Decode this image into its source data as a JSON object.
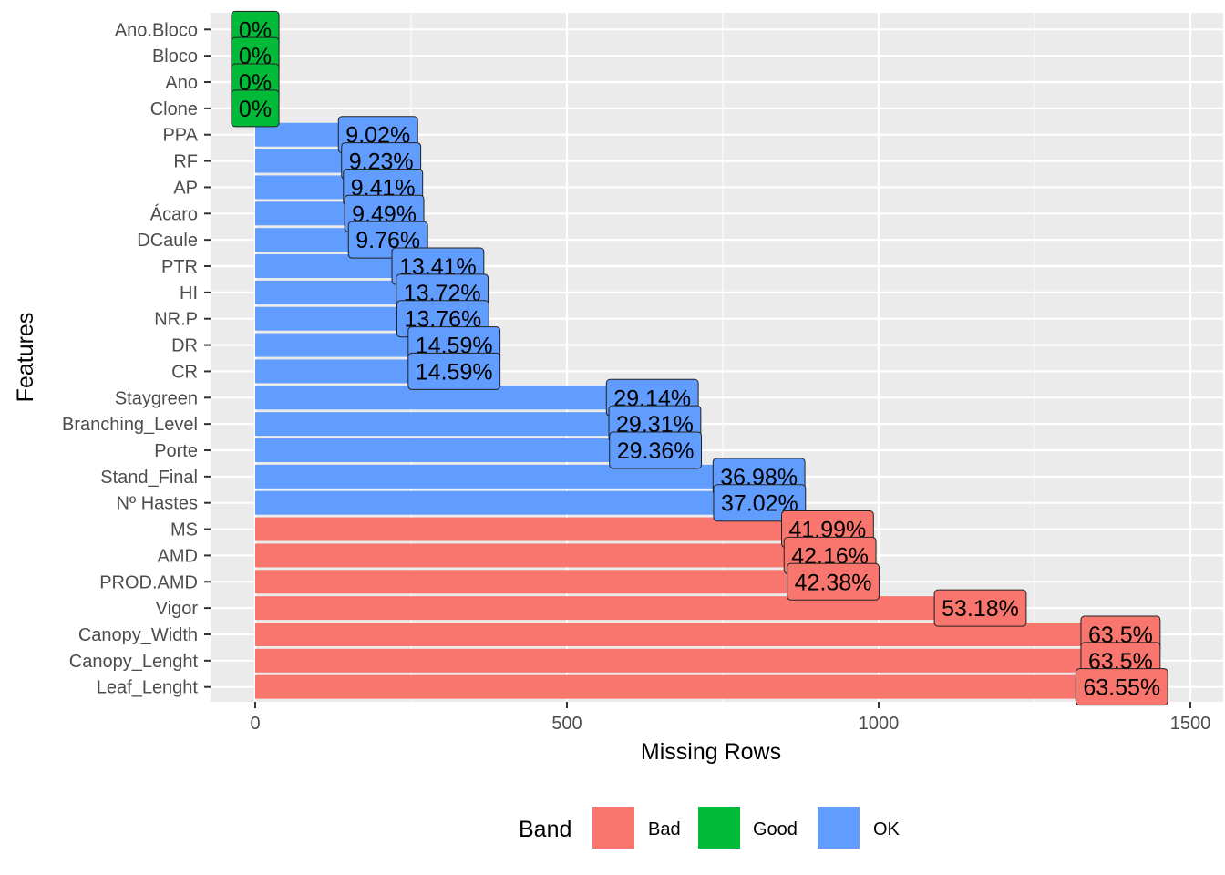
{
  "chart_data": {
    "type": "bar",
    "orientation": "horizontal",
    "xlabel": "Missing Rows",
    "ylabel": "Features",
    "xlim": [
      -72,
      1545
    ],
    "xticks": [
      0,
      500,
      1000,
      1500
    ],
    "grid": true,
    "legend": {
      "title": "Band",
      "placement": "bottom",
      "entries": [
        {
          "label": "Bad",
          "color": "#F8766D"
        },
        {
          "label": "Good",
          "color": "#00BA38"
        },
        {
          "label": "OK",
          "color": "#619CFF"
        }
      ]
    },
    "colors": {
      "Bad": "#F8766D",
      "Good": "#00BA38",
      "OK": "#619CFF"
    },
    "bars": [
      {
        "feature": "Ano.Bloco",
        "value": 0,
        "label": "0%",
        "band": "Good"
      },
      {
        "feature": "Bloco",
        "value": 0,
        "label": "0%",
        "band": "Good"
      },
      {
        "feature": "Ano",
        "value": 0,
        "label": "0%",
        "band": "Good"
      },
      {
        "feature": "Clone",
        "value": 0,
        "label": "0%",
        "band": "Good"
      },
      {
        "feature": "PPA",
        "value": 197,
        "label": "9.02%",
        "band": "OK"
      },
      {
        "feature": "RF",
        "value": 202,
        "label": "9.23%",
        "band": "OK"
      },
      {
        "feature": "AP",
        "value": 205,
        "label": "9.41%",
        "band": "OK"
      },
      {
        "feature": "Ácaro",
        "value": 207,
        "label": "9.49%",
        "band": "OK"
      },
      {
        "feature": "DCaule",
        "value": 213,
        "label": "9.76%",
        "band": "OK"
      },
      {
        "feature": "PTR",
        "value": 293,
        "label": "13.41%",
        "band": "OK"
      },
      {
        "feature": "HI",
        "value": 300,
        "label": "13.72%",
        "band": "OK"
      },
      {
        "feature": "NR.P",
        "value": 301,
        "label": "13.76%",
        "band": "OK"
      },
      {
        "feature": "DR",
        "value": 319,
        "label": "14.59%",
        "band": "OK"
      },
      {
        "feature": "CR",
        "value": 319,
        "label": "14.59%",
        "band": "OK"
      },
      {
        "feature": "Staygreen",
        "value": 637,
        "label": "29.14%",
        "band": "OK"
      },
      {
        "feature": "Branching_Level",
        "value": 641,
        "label": "29.31%",
        "band": "OK"
      },
      {
        "feature": "Porte",
        "value": 642,
        "label": "29.36%",
        "band": "OK"
      },
      {
        "feature": "Stand_Final",
        "value": 808,
        "label": "36.98%",
        "band": "OK"
      },
      {
        "feature": "Nº Hastes",
        "value": 809,
        "label": "37.02%",
        "band": "OK"
      },
      {
        "feature": "MS",
        "value": 918,
        "label": "41.99%",
        "band": "Bad"
      },
      {
        "feature": "AMD",
        "value": 922,
        "label": "42.16%",
        "band": "Bad"
      },
      {
        "feature": "PROD.AMD",
        "value": 927,
        "label": "42.38%",
        "band": "Bad"
      },
      {
        "feature": "Vigor",
        "value": 1163,
        "label": "53.18%",
        "band": "Bad"
      },
      {
        "feature": "Canopy_Width",
        "value": 1388,
        "label": "63.5%",
        "band": "Bad"
      },
      {
        "feature": "Canopy_Lenght",
        "value": 1388,
        "label": "63.5%",
        "band": "Bad"
      },
      {
        "feature": "Leaf_Lenght",
        "value": 1390,
        "label": "63.55%",
        "band": "Bad"
      }
    ]
  }
}
